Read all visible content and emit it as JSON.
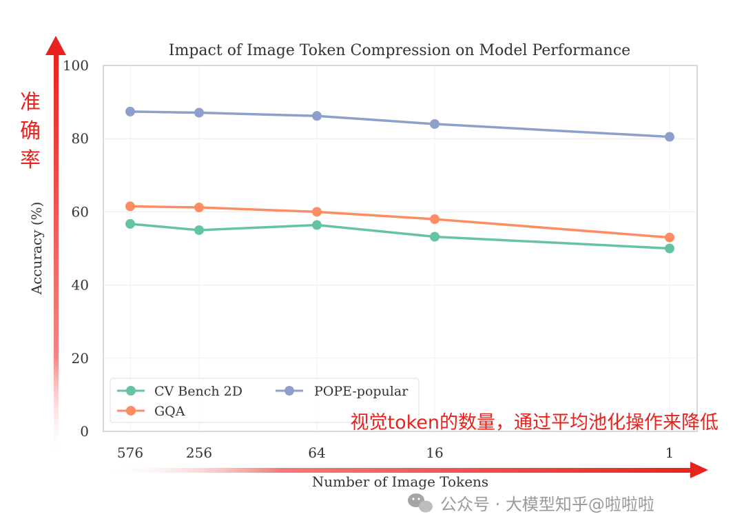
{
  "chart_data": {
    "type": "line",
    "title": "Impact of Image Token Compression on Model Performance",
    "xlabel": "Number of Image Tokens",
    "ylabel": "Accuracy (%)",
    "categories": [
      "576",
      "256",
      "64",
      "16",
      "1"
    ],
    "yticks": [
      "0",
      "20",
      "40",
      "60",
      "80",
      "100"
    ],
    "ylim": [
      0,
      100
    ],
    "grid": true,
    "legend_position": "lower-left",
    "series": [
      {
        "name": "CV Bench 2D",
        "color": "#66c2a5",
        "values": [
          56.7,
          55.0,
          56.4,
          53.2,
          50.0
        ]
      },
      {
        "name": "GQA",
        "color": "#fc8d62",
        "values": [
          61.5,
          61.2,
          60.0,
          58.0,
          53.0
        ]
      },
      {
        "name": "POPE-popular",
        "color": "#8da0cb",
        "values": [
          87.4,
          87.1,
          86.2,
          84.0,
          80.5
        ]
      }
    ]
  },
  "annotations": {
    "y_arrow_label": [
      "准",
      "确",
      "率"
    ],
    "x_note": "视觉token的数量，通过平均池化操作来降低",
    "accent_color": "#e8231d"
  },
  "watermark": {
    "icon": "wechat-icon",
    "text": "公众号 · 大模型知乎@啦啦啦"
  }
}
